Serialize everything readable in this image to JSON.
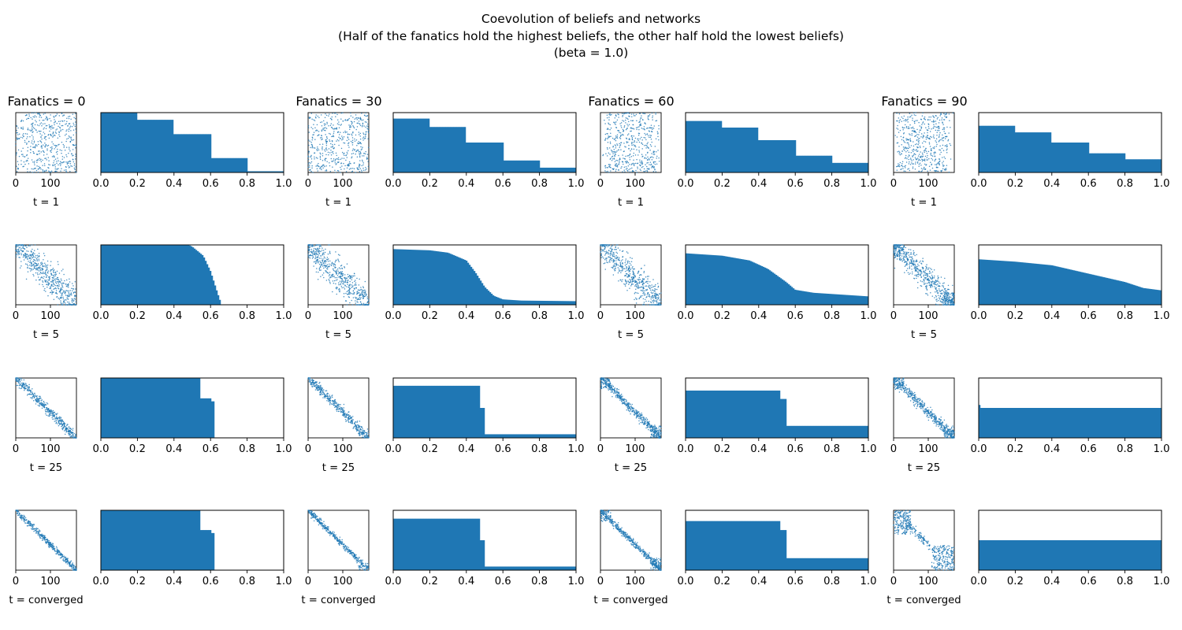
{
  "figure": {
    "title_lines": [
      "Coevolution of beliefs and networks",
      "(Half of the fanatics hold the highest beliefs, the other half hold the lowest beliefs)",
      "(beta = 1.0)"
    ]
  },
  "colors": {
    "series": "#1f77b4",
    "axis": "#000000",
    "background": "#ffffff"
  },
  "chart_data": {
    "type": "figure-grid",
    "columns": [
      {
        "title": "Fanatics = 0"
      },
      {
        "title": "Fanatics = 30"
      },
      {
        "title": "Fanatics = 60"
      },
      {
        "title": "Fanatics = 90"
      }
    ],
    "rows": [
      {
        "label": "t = 1"
      },
      {
        "label": "t = 5"
      },
      {
        "label": "t = 25"
      },
      {
        "label": "t = converged"
      }
    ],
    "scatter_axes": {
      "type": "scatter",
      "xlim": [
        0,
        175
      ],
      "ylim": [
        0,
        175
      ],
      "xticks": [
        "0",
        "100"
      ],
      "xtick_values": [
        0,
        100
      ],
      "y_ticks_shown": false,
      "marker_size": "small"
    },
    "bar_axes": {
      "type": "bar",
      "xlim": [
        0,
        1
      ],
      "xticks": [
        "0.0",
        "0.2",
        "0.4",
        "0.6",
        "0.8",
        "1.0"
      ],
      "xtick_values": [
        0,
        0.2,
        0.4,
        0.6,
        0.8,
        1.0
      ],
      "y_ticks_shown": false,
      "ylim": [
        0,
        1
      ]
    },
    "belief_profiles": [
      [
        {
          "type": "step",
          "breaks": [
            0,
            0.2,
            0.4,
            0.6,
            0.8,
            1.0
          ],
          "values": [
            1.0,
            0.88,
            0.64,
            0.24,
            0.02
          ]
        },
        {
          "type": "curve",
          "points": [
            [
              0,
              1.0
            ],
            [
              0.48,
              1.0
            ],
            [
              0.5,
              0.97
            ],
            [
              0.56,
              0.82
            ],
            [
              0.6,
              0.56
            ],
            [
              0.64,
              0.18
            ],
            [
              0.66,
              0.0
            ],
            [
              1.0,
              0.0
            ]
          ]
        },
        {
          "type": "step",
          "breaks": [
            0,
            0.547,
            0.6,
            0.625,
            1.0
          ],
          "values": [
            1.0,
            0.66,
            0.61,
            0.0
          ]
        },
        {
          "type": "step",
          "breaks": [
            0,
            0.547,
            0.6,
            0.625,
            1.0
          ],
          "values": [
            1.0,
            0.67,
            0.62,
            0.0
          ]
        }
      ],
      [
        {
          "type": "step",
          "breaks": [
            0,
            0.2,
            0.4,
            0.6,
            0.8,
            1.0
          ],
          "values": [
            0.9,
            0.76,
            0.5,
            0.2,
            0.08
          ]
        },
        {
          "type": "curve",
          "points": [
            [
              0,
              0.93
            ],
            [
              0.2,
              0.91
            ],
            [
              0.3,
              0.87
            ],
            [
              0.4,
              0.74
            ],
            [
              0.45,
              0.54
            ],
            [
              0.5,
              0.3
            ],
            [
              0.55,
              0.15
            ],
            [
              0.6,
              0.09
            ],
            [
              0.7,
              0.07
            ],
            [
              1.0,
              0.06
            ]
          ]
        },
        {
          "type": "step",
          "breaks": [
            0,
            0.47,
            0.5,
            0.5001,
            1.0
          ],
          "values": [
            0.87,
            0.5,
            0.5,
            0.06
          ]
        },
        {
          "type": "step",
          "breaks": [
            0,
            0.47,
            0.5,
            0.5001,
            1.0
          ],
          "values": [
            0.86,
            0.5,
            0.5,
            0.06
          ]
        }
      ],
      [
        {
          "type": "step",
          "breaks": [
            0,
            0.2,
            0.4,
            0.6,
            0.8,
            1.0
          ],
          "values": [
            0.86,
            0.75,
            0.54,
            0.28,
            0.16
          ]
        },
        {
          "type": "curve",
          "points": [
            [
              0,
              0.86
            ],
            [
              0.2,
              0.82
            ],
            [
              0.35,
              0.74
            ],
            [
              0.45,
              0.6
            ],
            [
              0.55,
              0.38
            ],
            [
              0.6,
              0.25
            ],
            [
              0.7,
              0.2
            ],
            [
              0.8,
              0.18
            ],
            [
              1.0,
              0.14
            ]
          ]
        },
        {
          "type": "step",
          "breaks": [
            0,
            0.52,
            0.55,
            0.555,
            1.0
          ],
          "values": [
            0.79,
            0.65,
            0.64,
            0.2
          ]
        },
        {
          "type": "step",
          "breaks": [
            0,
            0.52,
            0.55,
            0.555,
            1.0
          ],
          "values": [
            0.82,
            0.67,
            0.66,
            0.2
          ]
        }
      ],
      [
        {
          "type": "step",
          "breaks": [
            0,
            0.2,
            0.4,
            0.6,
            0.8,
            1.0
          ],
          "values": [
            0.78,
            0.67,
            0.5,
            0.32,
            0.22
          ]
        },
        {
          "type": "curve",
          "points": [
            [
              0,
              0.76
            ],
            [
              0.2,
              0.72
            ],
            [
              0.4,
              0.66
            ],
            [
              0.6,
              0.52
            ],
            [
              0.8,
              0.38
            ],
            [
              0.9,
              0.28
            ],
            [
              1.0,
              0.24
            ]
          ]
        },
        {
          "type": "step",
          "breaks": [
            0,
            0.003,
            0.006,
            0.01,
            1.0
          ],
          "values": [
            0.6,
            0.55,
            0.5,
            0.5
          ]
        },
        {
          "type": "flat",
          "value": 0.5
        }
      ]
    ],
    "network_patterns": [
      [
        "uniform",
        "band-wide",
        "band-narrow",
        "band-tight"
      ],
      [
        "uniform",
        "band-wide",
        "band-narrow-tail",
        "band-tight-tail"
      ],
      [
        "uniform-left",
        "band-wide",
        "band-narrow-split",
        "band-tight-split"
      ],
      [
        "uniform-left",
        "band-wide-split",
        "band-split",
        "split-cluster"
      ]
    ]
  }
}
